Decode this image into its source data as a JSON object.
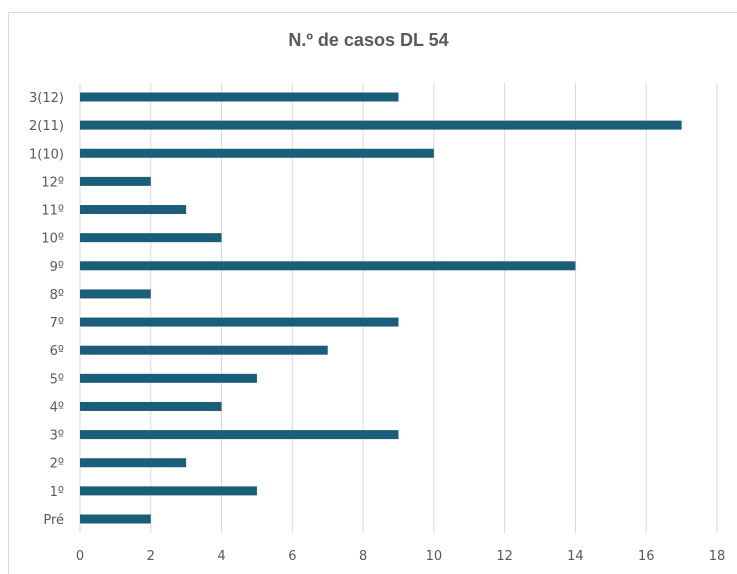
{
  "chart_data": {
    "type": "bar",
    "orientation": "horizontal",
    "title": "N.º de casos DL 54",
    "categories": [
      "Pré",
      "1º",
      "2º",
      "3º",
      "4º",
      "5º",
      "6º",
      "7º",
      "8º",
      "9º",
      "10º",
      "11º",
      "12º",
      "1(10)",
      "2(11)",
      "3(12)"
    ],
    "values": [
      2,
      5,
      3,
      9,
      4,
      5,
      7,
      9,
      2,
      14,
      4,
      3,
      2,
      10,
      17,
      9
    ],
    "xlim": [
      0,
      18
    ],
    "xticks": [
      "0",
      "2",
      "4",
      "6",
      "8",
      "10",
      "12",
      "14",
      "16",
      "18"
    ],
    "grid": "vertical",
    "bar_color": "#1b5e7b",
    "legend": "none"
  }
}
